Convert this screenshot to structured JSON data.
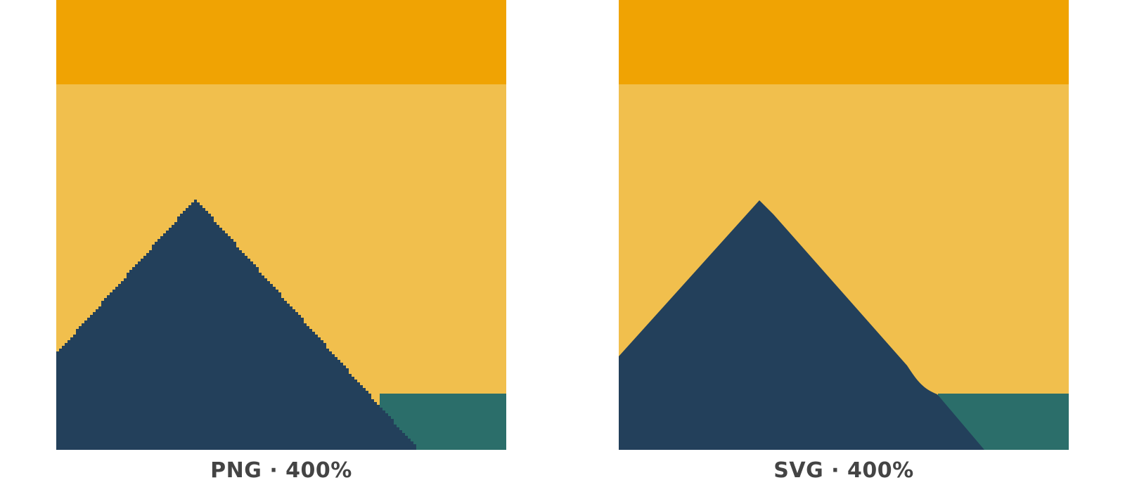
{
  "colors": {
    "sky_top": "#F0A303",
    "sky_main": "#F1BF4D",
    "mountain": "#23405B",
    "ground": "#2B6E6A",
    "caption": "#444444",
    "background": "#FFFFFF"
  },
  "panels": [
    {
      "id": "png",
      "caption": "PNG · 400%",
      "rendering": "pixelated"
    },
    {
      "id": "svg",
      "caption": "SVG · 400%",
      "rendering": "smooth"
    }
  ]
}
